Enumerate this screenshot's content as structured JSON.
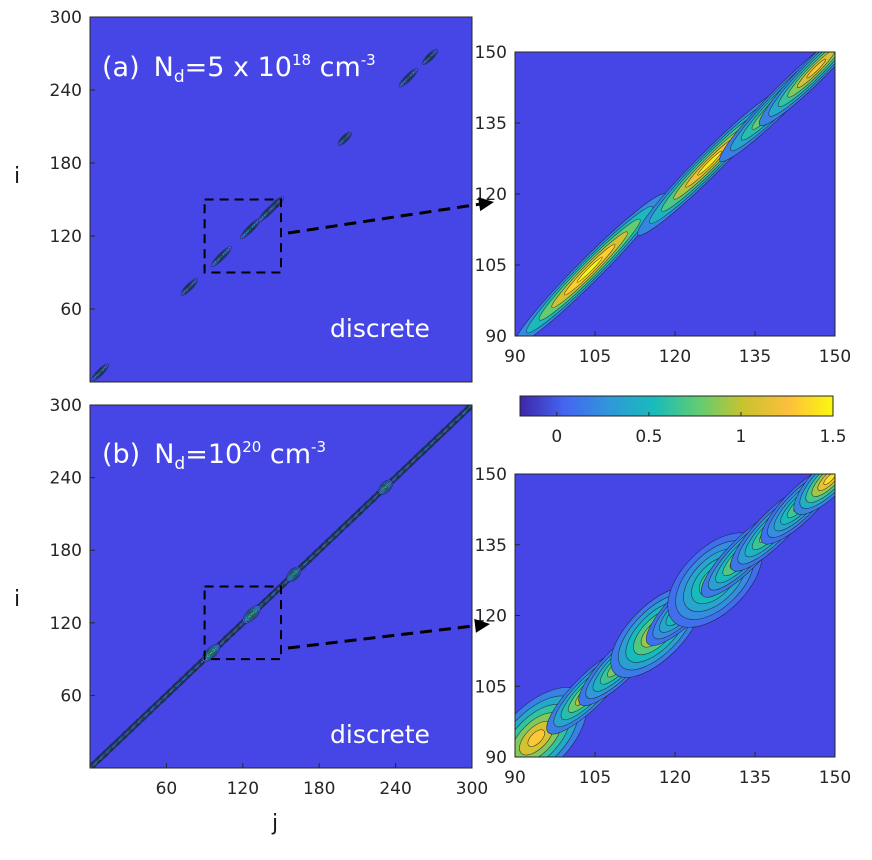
{
  "figure": {
    "colorbar": {
      "ticks": [
        "0",
        "0.5",
        "1",
        "1.5"
      ],
      "range": [
        -0.2,
        1.5
      ],
      "colormap_stops": [
        "#3e26a8",
        "#4465f2",
        "#2f98d8",
        "#18bcbb",
        "#61cc72",
        "#c8c32e",
        "#fdbf3c",
        "#f9f80e"
      ]
    },
    "background_color": "#4646e6",
    "annotation_color": "#000000"
  },
  "chart_data": [
    {
      "id": "a-main",
      "type": "heatmap",
      "panel_label": "(a)",
      "title_prefix": "N",
      "title_sub": "d",
      "title_value": "=5 x 10",
      "title_exp": "18",
      "title_unit": " cm",
      "title_unit_exp": "-3",
      "annotation": "discrete",
      "ylabel": "i",
      "xlabel": "",
      "xlim": [
        0,
        300
      ],
      "ylim": [
        0,
        300
      ],
      "yticks": [
        "60",
        "120",
        "180",
        "240",
        "300"
      ],
      "ytick_values": [
        60,
        120,
        180,
        240,
        300
      ],
      "xticks": [],
      "xtick_values": [],
      "zoom_box": {
        "x": [
          90,
          150
        ],
        "y": [
          90,
          150
        ]
      },
      "blobs": [
        {
          "x": 8,
          "y": 8,
          "len": 18,
          "w": 2.5,
          "peak": 0.35
        },
        {
          "x": 78,
          "y": 78,
          "len": 18,
          "w": 2.5,
          "peak": 0.35
        },
        {
          "x": 103,
          "y": 103,
          "len": 22,
          "w": 2.5,
          "peak": 0.5
        },
        {
          "x": 126,
          "y": 126,
          "len": 22,
          "w": 2.5,
          "peak": 0.45
        },
        {
          "x": 140,
          "y": 140,
          "len": 22,
          "w": 2.5,
          "peak": 0.45
        },
        {
          "x": 146,
          "y": 146,
          "len": 16,
          "w": 2.5,
          "peak": 0.4
        },
        {
          "x": 200,
          "y": 200,
          "len": 14,
          "w": 2.5,
          "peak": 0.35
        },
        {
          "x": 250,
          "y": 250,
          "len": 20,
          "w": 2.5,
          "peak": 0.35
        },
        {
          "x": 267,
          "y": 267,
          "len": 16,
          "w": 2.5,
          "peak": 0.35
        }
      ]
    },
    {
      "id": "a-zoom",
      "type": "heatmap",
      "xlim": [
        90,
        150
      ],
      "ylim": [
        90,
        150
      ],
      "xticks": [
        "90",
        "105",
        "120",
        "135",
        "150"
      ],
      "xtick_values": [
        90,
        105,
        120,
        135,
        150
      ],
      "yticks": [
        "90",
        "105",
        "120",
        "135",
        "150"
      ],
      "ytick_values": [
        90,
        105,
        120,
        135,
        150
      ],
      "blobs": [
        {
          "x": 104,
          "y": 104,
          "len": 40,
          "w": 2.2,
          "peak": 1.6
        },
        {
          "x": 126.5,
          "y": 126.5,
          "len": 38,
          "w": 2.2,
          "peak": 1.45
        },
        {
          "x": 140.5,
          "y": 140.5,
          "len": 34,
          "w": 2.2,
          "peak": 1.2
        },
        {
          "x": 146.5,
          "y": 146.5,
          "len": 30,
          "w": 2.2,
          "peak": 1.3
        }
      ]
    },
    {
      "id": "b-main",
      "type": "heatmap",
      "panel_label": "(b)",
      "title_prefix": "N",
      "title_sub": "d",
      "title_value": "=10",
      "title_exp": "20",
      "title_unit": " cm",
      "title_unit_exp": "-3",
      "annotation": "discrete",
      "ylabel": "i",
      "xlabel": "j",
      "xlim": [
        0,
        300
      ],
      "ylim": [
        0,
        300
      ],
      "yticks": [
        "60",
        "120",
        "180",
        "240",
        "300"
      ],
      "ytick_values": [
        60,
        120,
        180,
        240,
        300
      ],
      "xticks": [
        "60",
        "120",
        "180",
        "240",
        "300"
      ],
      "xtick_values": [
        60,
        120,
        180,
        240,
        300
      ],
      "zoom_box": {
        "x": [
          90,
          150
        ],
        "y": [
          90,
          150
        ]
      },
      "diagonal_band": {
        "start": 2,
        "end": 298,
        "spacing": 5,
        "len": 14,
        "w": 2.2,
        "peak": 0.6
      },
      "blobs": [
        {
          "x": 95,
          "y": 95,
          "len": 18,
          "w": 4,
          "peak": 0.8
        },
        {
          "x": 127,
          "y": 127,
          "len": 18,
          "w": 4,
          "peak": 0.8
        },
        {
          "x": 160,
          "y": 160,
          "len": 14,
          "w": 4,
          "peak": 0.7
        },
        {
          "x": 232,
          "y": 232,
          "len": 14,
          "w": 4,
          "peak": 0.7
        }
      ]
    },
    {
      "id": "b-zoom",
      "type": "heatmap",
      "xlim": [
        90,
        150
      ],
      "ylim": [
        90,
        150
      ],
      "xticks": [
        "90",
        "105",
        "120",
        "135",
        "150"
      ],
      "xtick_values": [
        90,
        105,
        120,
        135,
        150
      ],
      "yticks": [
        "90",
        "105",
        "120",
        "135",
        "150"
      ],
      "ytick_values": [
        90,
        105,
        120,
        135,
        150
      ],
      "blobs": [
        {
          "x": 94,
          "y": 94,
          "len": 24,
          "w": 6,
          "peak": 1.3
        },
        {
          "x": 104,
          "y": 104,
          "len": 22,
          "w": 3,
          "peak": 1.2
        },
        {
          "x": 110,
          "y": 110,
          "len": 22,
          "w": 3,
          "peak": 1.0
        },
        {
          "x": 116.5,
          "y": 116.5,
          "len": 22,
          "w": 5,
          "peak": 1.1
        },
        {
          "x": 122,
          "y": 122,
          "len": 20,
          "w": 3,
          "peak": 0.8
        },
        {
          "x": 127.5,
          "y": 127.5,
          "len": 22,
          "w": 6,
          "peak": 0.8
        },
        {
          "x": 133,
          "y": 133,
          "len": 22,
          "w": 3,
          "peak": 1.1
        },
        {
          "x": 138.5,
          "y": 138.5,
          "len": 22,
          "w": 3,
          "peak": 1.0
        },
        {
          "x": 143.5,
          "y": 143.5,
          "len": 20,
          "w": 3,
          "peak": 0.8
        },
        {
          "x": 149,
          "y": 149,
          "len": 18,
          "w": 3,
          "peak": 1.4
        }
      ]
    }
  ]
}
